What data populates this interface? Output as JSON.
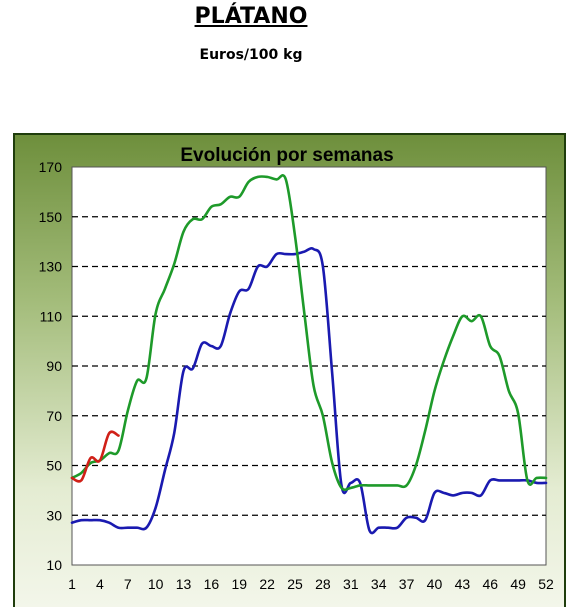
{
  "page": {
    "title": "PLÁTANO",
    "subtitle": "Euros/100 kg"
  },
  "chart_data": {
    "type": "line",
    "title": "Evolución por semanas",
    "xlabel": "",
    "ylabel": "",
    "xlim": [
      1,
      52
    ],
    "ylim": [
      10,
      170
    ],
    "xticks": [
      1,
      4,
      7,
      10,
      13,
      16,
      19,
      22,
      25,
      28,
      31,
      34,
      37,
      40,
      43,
      46,
      49,
      52
    ],
    "yticks": [
      10,
      30,
      50,
      70,
      90,
      110,
      130,
      150,
      170
    ],
    "grid": "horizontal-dashed",
    "series": [
      {
        "color": "#1a1ab0",
        "x": [
          1,
          2,
          3,
          4,
          5,
          6,
          7,
          8,
          9,
          10,
          11,
          12,
          13,
          14,
          15,
          16,
          17,
          18,
          19,
          20,
          21,
          22,
          23,
          24,
          25,
          26,
          27,
          28,
          29,
          30,
          31,
          32,
          33,
          34,
          35,
          36,
          37,
          38,
          39,
          40,
          41,
          42,
          43,
          44,
          45,
          46,
          47,
          48,
          49,
          50,
          51,
          52
        ],
        "values": [
          27,
          28,
          28,
          28,
          27,
          25,
          25,
          25,
          25,
          33,
          48,
          63,
          88,
          89,
          99,
          98,
          98,
          111,
          120,
          121,
          130,
          130,
          135,
          135,
          135,
          136,
          137,
          130,
          87,
          42,
          43,
          43,
          24,
          25,
          25,
          25,
          29,
          29,
          28,
          39,
          39,
          38,
          39,
          39,
          38,
          44,
          44,
          44,
          44,
          44,
          43,
          43
        ]
      },
      {
        "color": "#1e9a2a",
        "x": [
          1,
          2,
          3,
          4,
          5,
          6,
          7,
          8,
          9,
          10,
          11,
          12,
          13,
          14,
          15,
          16,
          17,
          18,
          19,
          20,
          21,
          22,
          23,
          24,
          25,
          26,
          27,
          28,
          29,
          30,
          31,
          32,
          33,
          34,
          35,
          36,
          37,
          38,
          39,
          40,
          41,
          42,
          43,
          44,
          45,
          46,
          47,
          48,
          49,
          50,
          51,
          52
        ],
        "values": [
          45,
          47,
          51,
          52,
          55,
          56,
          72,
          84,
          85,
          111,
          121,
          131,
          144,
          149,
          149,
          154,
          155,
          158,
          158,
          164,
          166,
          166,
          165,
          165,
          142,
          111,
          82,
          70,
          51,
          41,
          41,
          42,
          42,
          42,
          42,
          42,
          42,
          50,
          64,
          80,
          92,
          102,
          110,
          108,
          110,
          98,
          94,
          80,
          71,
          44,
          45,
          45
        ]
      },
      {
        "color": "#d02018",
        "x": [
          1,
          2,
          3,
          4,
          5,
          6
        ],
        "values": [
          45,
          44,
          53,
          52,
          63,
          62
        ]
      }
    ]
  }
}
